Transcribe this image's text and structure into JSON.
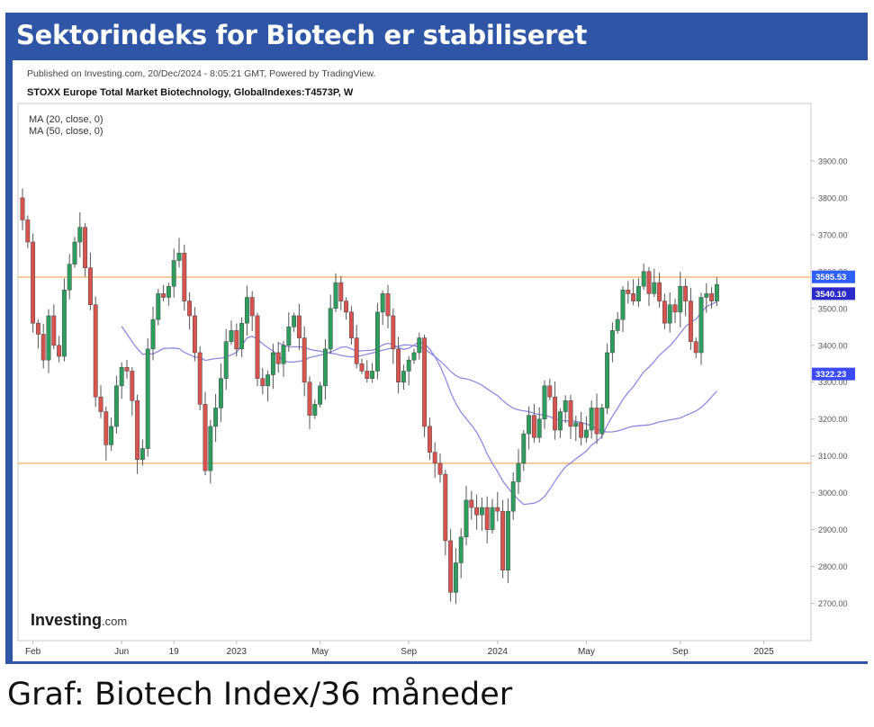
{
  "banner": {
    "title": "Sektorindeks for Biotech er stabiliseret"
  },
  "caption": "Graf: Biotech Index/36 måneder",
  "chart_data": {
    "type": "candlestick",
    "published": "Published on Investing.com, 20/Dec/2024 - 8:05:21 GMT, Powered by TradingView.",
    "symbol": "STOXX Europe Total Market Biotechnology, GlobalIndexes:T4573P, W",
    "indicators": [
      "MA (20, close, 0)",
      "MA (50, close, 0)"
    ],
    "logo": {
      "main": "Investing",
      "suffix": ".com"
    },
    "ylim": [
      2660,
      3990
    ],
    "yticks": [
      {
        "value": 3900,
        "label": "3900.00"
      },
      {
        "value": 3800,
        "label": "3800.00"
      },
      {
        "value": 3700,
        "label": "3700.00"
      },
      {
        "value": 3600,
        "label": "3600.00"
      },
      {
        "value": 3500,
        "label": "3500.00"
      },
      {
        "value": 3400,
        "label": "3400.00"
      },
      {
        "value": 3300,
        "label": "3300.00"
      },
      {
        "value": 3200,
        "label": "3200.00"
      },
      {
        "value": 3100,
        "label": "3100.00"
      },
      {
        "value": 3000,
        "label": "3000.00"
      },
      {
        "value": 2900,
        "label": "2900.00"
      },
      {
        "value": 2800,
        "label": "2800.00"
      },
      {
        "value": 2700,
        "label": "2700.00"
      }
    ],
    "xticks": [
      {
        "week": 2,
        "label": "Feb"
      },
      {
        "week": 19,
        "label": "Jun"
      },
      {
        "week": 29,
        "label": "19"
      },
      {
        "week": 41,
        "label": "2023"
      },
      {
        "week": 57,
        "label": "May"
      },
      {
        "week": 74,
        "label": "Sep"
      },
      {
        "week": 91,
        "label": "2024"
      },
      {
        "week": 108,
        "label": "May"
      },
      {
        "week": 126,
        "label": "Sep"
      },
      {
        "week": 142,
        "label": "2025"
      }
    ],
    "horizontal_lines": [
      3585,
      3080
    ],
    "price_labels": [
      {
        "value": 3585.53,
        "label": "3585.53",
        "color": "#2f5fff"
      },
      {
        "value": 3540.1,
        "label": "3540.10",
        "color": "#2a2ac8"
      },
      {
        "value": 3322.23,
        "label": "3322.23",
        "color": "#3b4bff"
      }
    ],
    "colors": {
      "up": "#2e9e5e",
      "down": "#d9534f",
      "ma": "#8c8ae0",
      "hline": "#f5b36b"
    },
    "closes": [
      3740,
      3680,
      3460,
      3430,
      3360,
      3480,
      3400,
      3370,
      3550,
      3620,
      3680,
      3720,
      3610,
      3510,
      3260,
      3220,
      3130,
      3180,
      3290,
      3340,
      3330,
      3250,
      3090,
      3120,
      3390,
      3470,
      3540,
      3530,
      3560,
      3630,
      3650,
      3520,
      3480,
      3380,
      3240,
      3060,
      3180,
      3230,
      3310,
      3410,
      3440,
      3390,
      3460,
      3530,
      3480,
      3310,
      3290,
      3320,
      3380,
      3350,
      3400,
      3450,
      3480,
      3420,
      3300,
      3210,
      3240,
      3290,
      3390,
      3500,
      3570,
      3520,
      3490,
      3420,
      3350,
      3330,
      3310,
      3330,
      3490,
      3540,
      3480,
      3390,
      3300,
      3330,
      3360,
      3380,
      3420,
      3180,
      3110,
      3080,
      3050,
      2870,
      2730,
      2810,
      2880,
      2980,
      2960,
      2940,
      2960,
      2900,
      2960,
      2950,
      2790,
      2950,
      3030,
      3080,
      3160,
      3210,
      3150,
      3200,
      3290,
      3260,
      3170,
      3220,
      3250,
      3180,
      3190,
      3150,
      3170,
      3230,
      3160,
      3230,
      3380,
      3440,
      3470,
      3550,
      3540,
      3520,
      3560,
      3600,
      3540,
      3570,
      3520,
      3460,
      3510,
      3490,
      3560,
      3520,
      3410,
      3380,
      3530,
      3540,
      3520,
      3565
    ]
  }
}
